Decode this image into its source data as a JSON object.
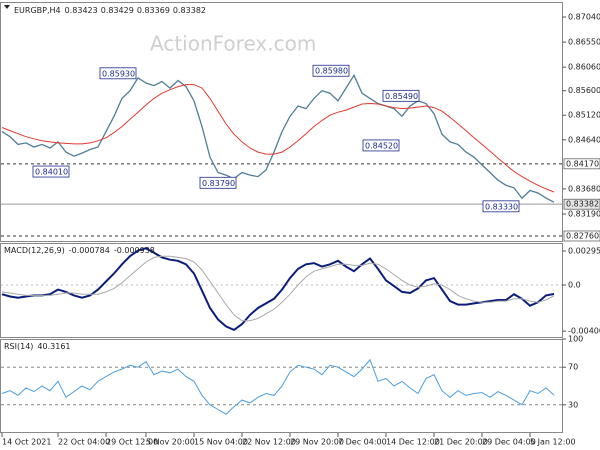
{
  "chart_data": [
    {
      "type": "line",
      "title": "EURGBP,H4",
      "ohlc": [
        0.83423,
        0.83429,
        0.83369,
        0.83382
      ],
      "watermark": "ActionForex.com",
      "series": [
        {
          "color": "#4f7e98",
          "values": [
            0.848,
            0.847,
            0.8455,
            0.8458,
            0.845,
            0.8455,
            0.8448,
            0.846,
            0.844,
            0.8432,
            0.8438,
            0.8445,
            0.845,
            0.848,
            0.851,
            0.8545,
            0.856,
            0.8585,
            0.8575,
            0.857,
            0.8578,
            0.8565,
            0.858,
            0.8568,
            0.854,
            0.849,
            0.843,
            0.84,
            0.8395,
            0.8388,
            0.84,
            0.8395,
            0.8392,
            0.8405,
            0.844,
            0.848,
            0.851,
            0.853,
            0.8525,
            0.8545,
            0.856,
            0.8555,
            0.854,
            0.8565,
            0.859,
            0.8555,
            0.8545,
            0.8535,
            0.853,
            0.8525,
            0.851,
            0.853,
            0.854,
            0.8535,
            0.8515,
            0.8475,
            0.846,
            0.8455,
            0.844,
            0.843,
            0.8415,
            0.84,
            0.8385,
            0.8375,
            0.837,
            0.835,
            0.8365,
            0.836,
            0.835,
            0.8342
          ]
        },
        {
          "color": "#e03a2f",
          "values": [
            0.8488,
            0.8482,
            0.8476,
            0.847,
            0.8466,
            0.8462,
            0.846,
            0.8458,
            0.8457,
            0.8456,
            0.8456,
            0.8458,
            0.8462,
            0.8468,
            0.8478,
            0.849,
            0.8504,
            0.8518,
            0.8532,
            0.8545,
            0.8555,
            0.8562,
            0.8568,
            0.8572,
            0.8572,
            0.8565,
            0.8545,
            0.852,
            0.8495,
            0.8475,
            0.846,
            0.8448,
            0.844,
            0.8436,
            0.8436,
            0.844,
            0.845,
            0.8462,
            0.8476,
            0.849,
            0.8502,
            0.8512,
            0.8518,
            0.8522,
            0.8528,
            0.8534,
            0.8535,
            0.8534,
            0.853,
            0.8527,
            0.8525,
            0.8526,
            0.8528,
            0.853,
            0.8527,
            0.852,
            0.8508,
            0.8495,
            0.8482,
            0.8468,
            0.8455,
            0.8442,
            0.8428,
            0.8415,
            0.8402,
            0.8392,
            0.8383,
            0.8375,
            0.8368,
            0.8362
          ]
        }
      ],
      "xlim": [
        0,
        69
      ],
      "ylim": [
        0.82662,
        0.87314
      ],
      "yticks": [
        {
          "value": 0.8704,
          "label": "0.87040"
        },
        {
          "value": 0.8655,
          "label": "0.86550"
        },
        {
          "value": 0.8606,
          "label": "0.86060"
        },
        {
          "value": 0.856,
          "label": "0.85600"
        },
        {
          "value": 0.8512,
          "label": "0.85120"
        },
        {
          "value": 0.8464,
          "label": "0.84640"
        },
        {
          "value": 0.8368,
          "label": "0.83680"
        },
        {
          "value": 0.8319,
          "label": "0.83190"
        }
      ],
      "levels": [
        {
          "value": 0.8417,
          "label": "0.84170"
        },
        {
          "value": 0.83382,
          "label": "0.83382"
        },
        {
          "value": 0.8276,
          "label": "0.82760"
        }
      ],
      "annotations": [
        {
          "value": 0.8593,
          "label": "0.85930"
        },
        {
          "value": 0.8401,
          "label": "0.84010"
        },
        {
          "value": 0.8379,
          "label": "0.83790"
        },
        {
          "value": 0.8598,
          "label": "0.85980"
        },
        {
          "value": 0.8549,
          "label": "0.85490"
        },
        {
          "value": 0.8452,
          "label": "0.84520"
        },
        {
          "value": 0.8333,
          "label": "0.83330"
        }
      ]
    },
    {
      "type": "line",
      "title": "MACD(12,26,9)",
      "series": [
        {
          "color": "#0b1d7a",
          "values": [
            -0.0008,
            -0.001,
            -0.0011,
            -0.001,
            -0.0009,
            -0.0009,
            -0.0008,
            -0.0004,
            -0.0006,
            -0.0009,
            -0.0011,
            -0.0009,
            -0.0004,
            0.0003,
            0.001,
            0.0018,
            0.0025,
            0.003,
            0.0032,
            0.0028,
            0.0024,
            0.0022,
            0.0021,
            0.0018,
            0.001,
            -0.0005,
            -0.002,
            -0.003,
            -0.0036,
            -0.0039,
            -0.0034,
            -0.0026,
            -0.002,
            -0.0016,
            -0.0012,
            -0.0004,
            0.0006,
            0.0014,
            0.0018,
            0.0019,
            0.0016,
            0.0018,
            0.0021,
            0.0016,
            0.0012,
            0.0018,
            0.0023,
            0.0014,
            0.0004,
            -0.0001,
            -0.0006,
            -0.0007,
            -0.0003,
            0.0004,
            0.0006,
            -0.0004,
            -0.0014,
            -0.0017,
            -0.0017,
            -0.0016,
            -0.0015,
            -0.0014,
            -0.0013,
            -0.0013,
            -0.0008,
            -0.0012,
            -0.0018,
            -0.0015,
            -0.0009,
            -0.000784
          ]
        },
        {
          "color": "#a8a8a8",
          "values": [
            -0.0006,
            -0.0007,
            -0.0008,
            -0.0009,
            -0.0009,
            -0.0009,
            -0.0009,
            -0.0008,
            -0.0007,
            -0.0007,
            -0.0008,
            -0.0008,
            -0.0008,
            -0.0006,
            -0.0003,
            0.0002,
            0.0008,
            0.0014,
            0.002,
            0.0024,
            0.0025,
            0.0025,
            0.0024,
            0.0023,
            0.002,
            0.0013,
            0.0003,
            -0.0007,
            -0.0017,
            -0.0026,
            -0.0031,
            -0.0031,
            -0.0029,
            -0.0025,
            -0.0021,
            -0.0015,
            -0.0008,
            0.0,
            0.0007,
            0.0012,
            0.0014,
            0.0016,
            0.0018,
            0.0018,
            0.0017,
            0.0017,
            0.0019,
            0.0018,
            0.0014,
            0.0009,
            0.0004,
            0.0,
            -0.0002,
            -0.0001,
            0.0001,
            0.0,
            -0.0004,
            -0.0009,
            -0.0012,
            -0.0014,
            -0.0015,
            -0.0015,
            -0.0014,
            -0.0014,
            -0.0012,
            -0.0012,
            -0.0014,
            -0.0015,
            -0.0013,
            -0.000938
          ]
        }
      ],
      "ylim": [
        -0.00452,
        0.00365
      ],
      "yticks": [
        0.002955,
        {
          "value": 0,
          "label": "0.0"
        },
        -0.004009
      ]
    },
    {
      "type": "line",
      "title": "RSI(14)",
      "series": [
        {
          "color": "#4a9ee0",
          "values": [
            42,
            45,
            40,
            48,
            44,
            50,
            45,
            55,
            38,
            44,
            50,
            46,
            55,
            60,
            65,
            68,
            72,
            70,
            76,
            62,
            66,
            64,
            68,
            60,
            55,
            40,
            30,
            25,
            20,
            28,
            35,
            32,
            38,
            42,
            40,
            50,
            65,
            72,
            70,
            68,
            62,
            72,
            70,
            65,
            60,
            68,
            78,
            55,
            58,
            50,
            55,
            48,
            42,
            58,
            62,
            45,
            38,
            45,
            40,
            42,
            43,
            38,
            44,
            40,
            35,
            30,
            45,
            42,
            48,
            40.3161
          ]
        }
      ],
      "ylim": [
        0,
        100
      ],
      "yticks": [
        100,
        70,
        30
      ],
      "xticks": [
        {
          "value": 0,
          "label": "14 Oct 2021"
        },
        {
          "value": 7,
          "label": "22 Oct 04:00"
        },
        {
          "value": 13,
          "label": "29 Oct 12:00"
        },
        {
          "value": 18,
          "label": "5 Nov 20:00"
        },
        {
          "value": 24,
          "label": "15 Nov 04:00"
        },
        {
          "value": 30,
          "label": "22 Nov 12:00"
        },
        {
          "value": 36,
          "label": "29 Nov 20:00"
        },
        {
          "value": 42,
          "label": "7 Dec 04:00"
        },
        {
          "value": 48,
          "label": "14 Dec 12:00"
        },
        {
          "value": 54,
          "label": "21 Dec 20:00"
        },
        {
          "value": 60,
          "label": "29 Dec 04:00"
        },
        {
          "value": 66,
          "label": "5 Jan 12:00"
        }
      ]
    }
  ]
}
